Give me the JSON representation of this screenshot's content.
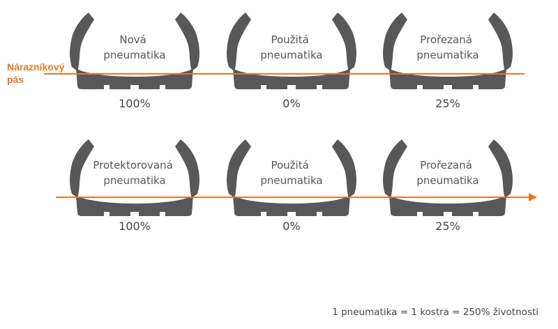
{
  "belt_label": [
    "Nárazníkový",
    "pás"
  ],
  "colors": {
    "tyre": "#58585a",
    "belt": "#e87722",
    "text": "#555555"
  },
  "rows": [
    {
      "tyres": [
        {
          "label": [
            "Nová",
            "pneumatika"
          ],
          "percent": "100%"
        },
        {
          "label": [
            "Použitá",
            "pneumatika"
          ],
          "percent": "0%"
        },
        {
          "label": [
            "Prořezaná",
            "pneumatika"
          ],
          "percent": "25%"
        }
      ]
    },
    {
      "tyres": [
        {
          "label": [
            "Protektorovaná",
            "pneumatika"
          ],
          "percent": "100%"
        },
        {
          "label": [
            "Použitá",
            "pneumatika"
          ],
          "percent": "0%"
        },
        {
          "label": [
            "Prořezaná",
            "pneumatika"
          ],
          "percent": "25%"
        }
      ]
    }
  ],
  "footnote": "1 pneumatika = 1 kostra = 250% životnosti"
}
